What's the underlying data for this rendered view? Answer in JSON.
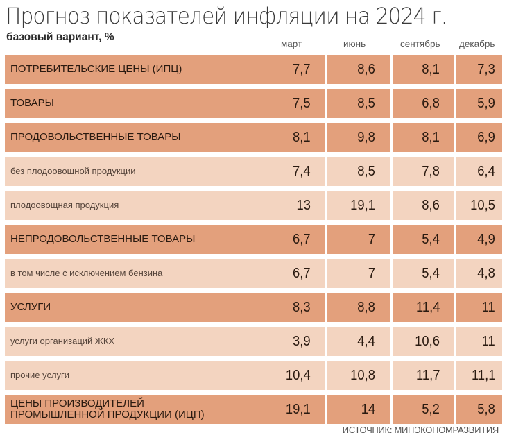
{
  "header": {
    "title": "Прогноз показателей инфляции на 2024 г.",
    "subtitle": "базовый вариант, %"
  },
  "columns": [
    "март",
    "июнь",
    "сентябрь",
    "декабрь"
  ],
  "rows": [
    {
      "label": "ПОТРЕБИТЕЛЬСКИЕ ЦЕНЫ (ИПЦ)",
      "type": "major",
      "values": [
        "7,7",
        "8,6",
        "8,1",
        "7,3"
      ]
    },
    {
      "label": "ТОВАРЫ",
      "type": "major",
      "values": [
        "7,5",
        "8,5",
        "6,8",
        "5,9"
      ]
    },
    {
      "label": "ПРОДОВОЛЬСТВЕННЫЕ ТОВАРЫ",
      "type": "major",
      "values": [
        "8,1",
        "9,8",
        "8,1",
        "6,9"
      ]
    },
    {
      "label": "без плодоовощной продукции",
      "type": "minor",
      "values": [
        "7,4",
        "8,5",
        "7,8",
        "6,4"
      ]
    },
    {
      "label": "плодоовощная продукция",
      "type": "minor",
      "values": [
        "13",
        "19,1",
        "8,6",
        "10,5"
      ]
    },
    {
      "label": "НЕПРОДОВОЛЬСТВЕННЫЕ ТОВАРЫ",
      "type": "major",
      "values": [
        "6,7",
        "7",
        "5,4",
        "4,9"
      ]
    },
    {
      "label": "в том числе с исключением бензина",
      "type": "minor",
      "values": [
        "6,7",
        "7",
        "5,4",
        "4,8"
      ]
    },
    {
      "label": "УСЛУГИ",
      "type": "major",
      "values": [
        "8,3",
        "8,8",
        "11,4",
        "11"
      ]
    },
    {
      "label": "услуги организаций ЖКХ",
      "type": "minor",
      "values": [
        "3,9",
        "4,4",
        "10,6",
        "11"
      ]
    },
    {
      "label": "прочие услуги",
      "type": "minor",
      "values": [
        "10,4",
        "10,8",
        "11,7",
        "11,1"
      ]
    },
    {
      "label": "ЦЕНЫ ПРОИЗВОДИТЕЛЕЙ\nПРОМЫШЛЕННОЙ ПРОДУКЦИИ (ИЦП)",
      "type": "major",
      "values": [
        "19,1",
        "14",
        "5,2",
        "5,8"
      ]
    }
  ],
  "footer": {
    "source": "ИСТОЧНИК: МИНЭКОНОМРАЗВИТИЯ"
  },
  "colors": {
    "major_row": "#e3a07c",
    "minor_row": "#f3d4c0",
    "text": "#2a1a10"
  },
  "chart_data": {
    "type": "table",
    "title": "Прогноз показателей инфляции на 2024 г.",
    "subtitle": "базовый вариант, %",
    "columns": [
      "март",
      "июнь",
      "сентябрь",
      "декабрь"
    ],
    "rows": [
      {
        "name": "ПОТРЕБИТЕЛЬСКИЕ ЦЕНЫ (ИПЦ)",
        "values": [
          7.7,
          8.6,
          8.1,
          7.3
        ]
      },
      {
        "name": "ТОВАРЫ",
        "values": [
          7.5,
          8.5,
          6.8,
          5.9
        ]
      },
      {
        "name": "ПРОДОВОЛЬСТВЕННЫЕ ТОВАРЫ",
        "values": [
          8.1,
          9.8,
          8.1,
          6.9
        ]
      },
      {
        "name": "без плодоовощной продукции",
        "values": [
          7.4,
          8.5,
          7.8,
          6.4
        ]
      },
      {
        "name": "плодоовощная продукция",
        "values": [
          13,
          19.1,
          8.6,
          10.5
        ]
      },
      {
        "name": "НЕПРОДОВОЛЬСТВЕННЫЕ ТОВАРЫ",
        "values": [
          6.7,
          7,
          5.4,
          4.9
        ]
      },
      {
        "name": "в том числе с исключением бензина",
        "values": [
          6.7,
          7,
          5.4,
          4.8
        ]
      },
      {
        "name": "УСЛУГИ",
        "values": [
          8.3,
          8.8,
          11.4,
          11
        ]
      },
      {
        "name": "услуги организаций ЖКХ",
        "values": [
          3.9,
          4.4,
          10.6,
          11
        ]
      },
      {
        "name": "прочие услуги",
        "values": [
          10.4,
          10.8,
          11.7,
          11.1
        ]
      },
      {
        "name": "ЦЕНЫ ПРОИЗВОДИТЕЛЕЙ ПРОМЫШЛЕННОЙ ПРОДУКЦИИ (ИЦП)",
        "values": [
          19.1,
          14,
          5.2,
          5.8
        ]
      }
    ],
    "source": "ИСТОЧНИК: МИНЭКОНОМРАЗВИТИЯ"
  }
}
